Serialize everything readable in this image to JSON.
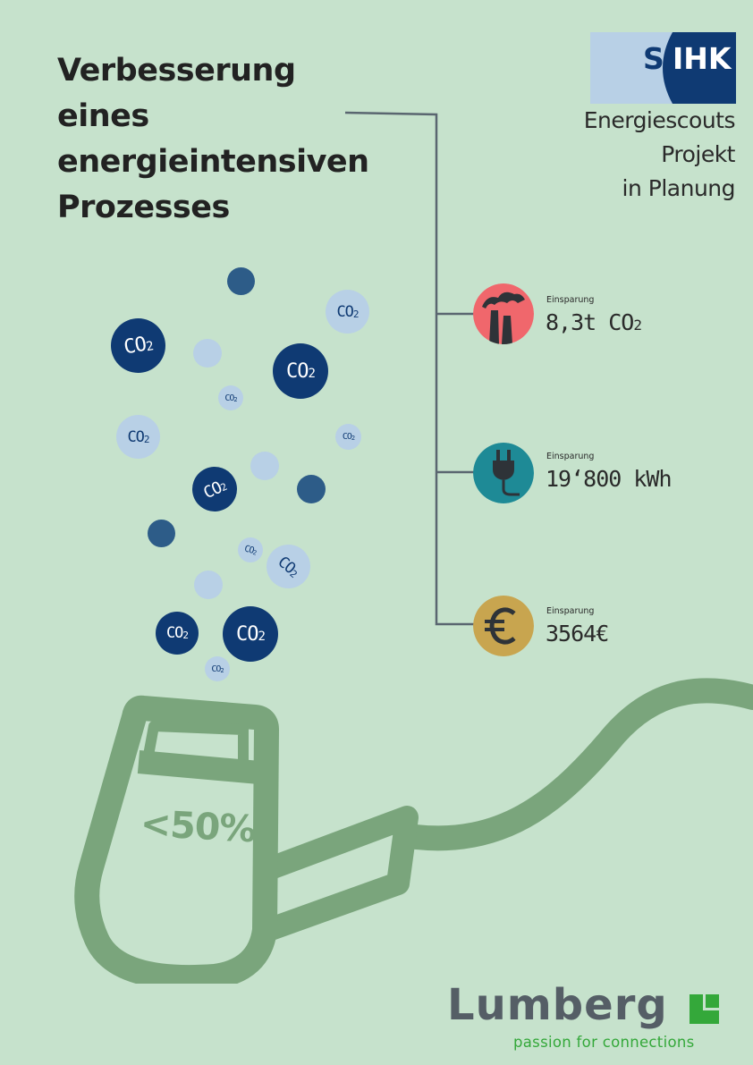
{
  "title_lines": [
    "Verbesserung",
    "eines",
    "energieintensiven",
    "Prozesses"
  ],
  "ihk": {
    "logo_s": "S",
    "logo_text": "IHK",
    "subtitle_lines": [
      "Energiescouts",
      "Projekt",
      "in Planung"
    ]
  },
  "stats": [
    {
      "icon": "factory-icon",
      "caption": "Einsparung",
      "value": "8,3t CO",
      "value_sub": "2",
      "color": "#f0676c"
    },
    {
      "icon": "plug-icon",
      "caption": "Einsparung",
      "value": "19‘800 kWh",
      "value_sub": "",
      "color": "#1e8a96"
    },
    {
      "icon": "euro-icon",
      "caption": "Einsparung",
      "value": "3564€",
      "value_sub": "",
      "color": "#c8a54f"
    }
  ],
  "co2_label": "CO",
  "co2_sub": "2",
  "percent_label": "<50%",
  "lumberg": {
    "wordmark": "Lumberg",
    "tagline": "passion for connections"
  },
  "colors": {
    "background": "#c6e2cc",
    "co2_dark": "#0f3a73",
    "co2_light": "#b8d0e6",
    "plug_green": "#7aa57c",
    "lumberg_green": "#34a83a"
  }
}
